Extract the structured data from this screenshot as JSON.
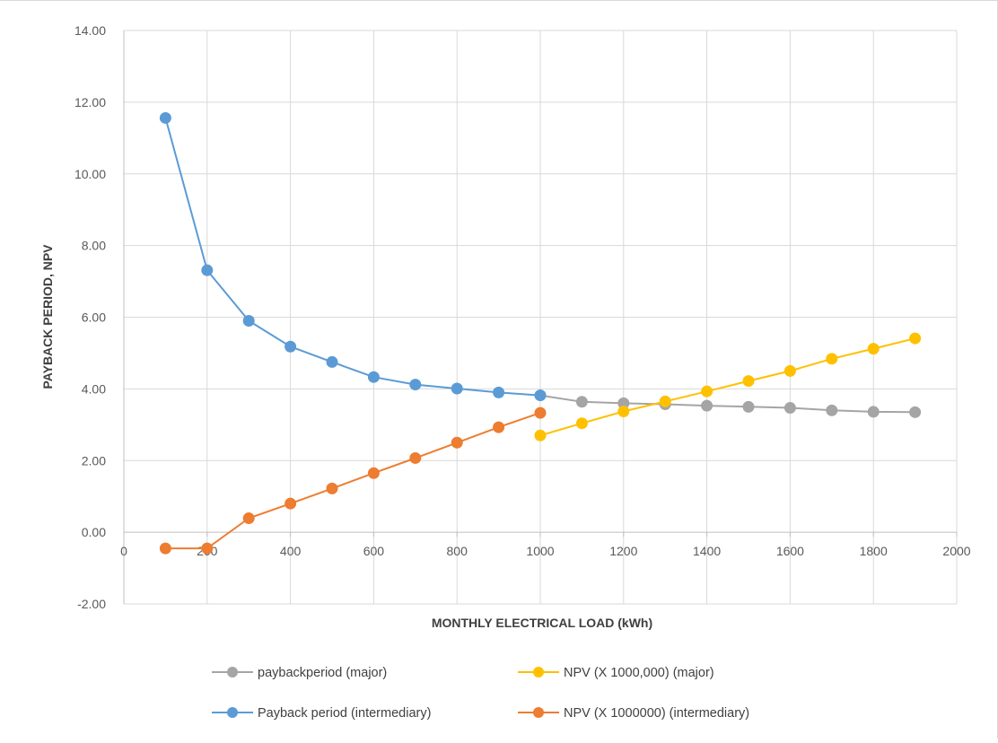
{
  "chart_data": {
    "type": "line",
    "title": "",
    "xlabel": "MONTHLY ELECTRICAL LOAD (kWh)",
    "ylabel": "PAYBACK PERIOD, NPV",
    "xlim": [
      0,
      2000
    ],
    "ylim": [
      -2,
      14
    ],
    "x_ticks": [
      "0",
      "200",
      "400",
      "600",
      "800",
      "1000",
      "1200",
      "1400",
      "1600",
      "1800",
      "2000"
    ],
    "y_ticks": [
      "-2.00",
      "0.00",
      "2.00",
      "4.00",
      "6.00",
      "8.00",
      "10.00",
      "12.00",
      "14.00"
    ],
    "grid": true,
    "legend_position": "bottom",
    "series": [
      {
        "name": "paybackperiod (major)",
        "color": "#a5a5a5",
        "x": [
          1000,
          1100,
          1200,
          1300,
          1400,
          1500,
          1600,
          1700,
          1800,
          1900
        ],
        "y": [
          3.82,
          3.64,
          3.6,
          3.57,
          3.53,
          3.5,
          3.47,
          3.4,
          3.36,
          3.35
        ]
      },
      {
        "name": "NPV (X 1000,000) (major)",
        "color": "#ffc000",
        "x": [
          1000,
          1100,
          1200,
          1300,
          1400,
          1500,
          1600,
          1700,
          1800,
          1900
        ],
        "y": [
          2.7,
          3.04,
          3.37,
          3.65,
          3.93,
          4.22,
          4.5,
          4.84,
          5.12,
          5.41
        ]
      },
      {
        "name": "Payback period (intermediary)",
        "color": "#5b9bd5",
        "x": [
          100,
          200,
          300,
          400,
          500,
          600,
          700,
          800,
          900,
          1000
        ],
        "y": [
          11.56,
          7.31,
          5.9,
          5.18,
          4.75,
          4.33,
          4.12,
          4.01,
          3.9,
          3.82
        ]
      },
      {
        "name": "NPV (X 1000000) (intermediary)",
        "color": "#ed7d31",
        "x": [
          100,
          200,
          300,
          400,
          500,
          600,
          700,
          800,
          900,
          1000
        ],
        "y": [
          -0.45,
          -0.45,
          0.39,
          0.8,
          1.22,
          1.65,
          2.07,
          2.5,
          2.93,
          3.33
        ]
      }
    ]
  }
}
